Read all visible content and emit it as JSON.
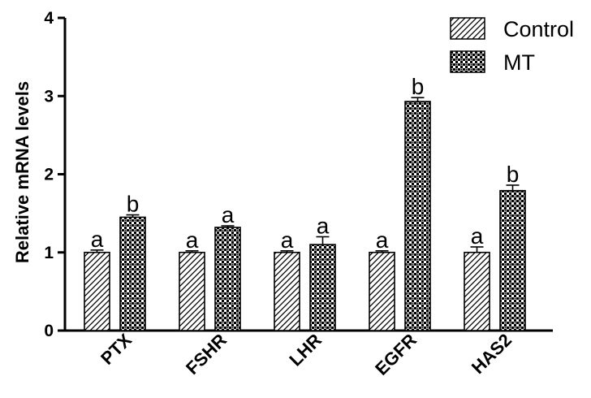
{
  "chart_data": {
    "type": "bar",
    "ylabel": "Relative mRNA levels",
    "ylim": [
      0,
      4
    ],
    "yticks": [
      "0",
      "1",
      "2",
      "3",
      "4"
    ],
    "categories": [
      "PTX",
      "FSHR",
      "LHR",
      "EGFR",
      "HAS2"
    ],
    "series": [
      {
        "name": "Control",
        "values": [
          1.0,
          1.0,
          1.0,
          1.0,
          1.0
        ],
        "errors": [
          0.03,
          0.02,
          0.02,
          0.02,
          0.07
        ],
        "labels": [
          "a",
          "a",
          "a",
          "a",
          "a"
        ],
        "pattern": "diagonal-hatch"
      },
      {
        "name": "MT",
        "values": [
          1.45,
          1.32,
          1.1,
          2.93,
          1.79
        ],
        "errors": [
          0.03,
          0.02,
          0.1,
          0.05,
          0.07
        ],
        "labels": [
          "b",
          "a",
          "a",
          "b",
          "b"
        ],
        "pattern": "checkered"
      }
    ],
    "legend_position": "top-right",
    "grid": false
  }
}
